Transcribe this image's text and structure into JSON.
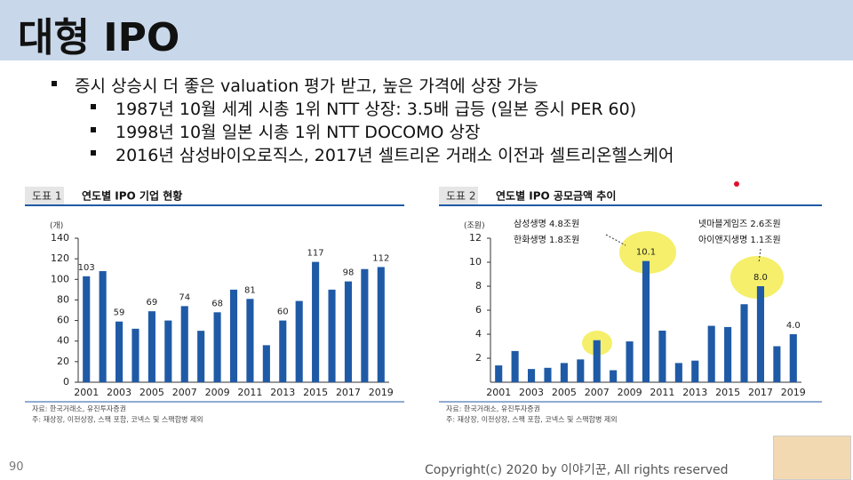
{
  "title": "대형 IPO",
  "bullets": [
    "증시 상승시 더 좋은 valuation 평가 받고, 높은 가격에 상장 가능",
    "1987년 10월 세계 시총 1위 NTT 상장: 3.5배 급등 (일본 증시 PER 60)",
    "1998년 10월 일본 시총 1위 NTT DOCOMO 상장",
    "2016년 삼성바이오로직스, 2017년 셀트리온 거래소 이전과 셀트리온헬스케어"
  ],
  "chart_data": [
    {
      "type": "bar",
      "label": "도표 1",
      "title": "연도별 IPO 기업 현황",
      "unit": "(개)",
      "categories": [
        "2001",
        null,
        "2003",
        null,
        "2005",
        null,
        "2007",
        null,
        "2009",
        null,
        "2011",
        null,
        "2013",
        null,
        "2015",
        null,
        "2017",
        null,
        "2019"
      ],
      "values": [
        103,
        108,
        59,
        52,
        69,
        60,
        74,
        50,
        68,
        90,
        81,
        36,
        60,
        79,
        117,
        90,
        98,
        110,
        112
      ],
      "value_labels": [
        "103",
        null,
        "59",
        null,
        "69",
        null,
        "74",
        null,
        "68",
        null,
        "81",
        null,
        "60",
        null,
        "117",
        null,
        "98",
        null,
        "112"
      ],
      "color": "#1f5aa6",
      "ylim": [
        0,
        140
      ],
      "yticks": [
        0,
        20,
        40,
        60,
        80,
        100,
        120,
        140
      ],
      "notes": [
        "자료: 한국거래소, 유진투자증권",
        "주: 재상장, 이전상장, 스팩 포함, 코넥스 및 스팩합병 제외"
      ]
    },
    {
      "type": "bar",
      "label": "도표 2",
      "title": "연도별 IPO 공모금액 추이",
      "unit": "(조원)",
      "categories": [
        "2001",
        null,
        "2003",
        null,
        "2005",
        null,
        "2007",
        null,
        "2009",
        null,
        "2011",
        null,
        "2013",
        null,
        "2015",
        null,
        "2017",
        null,
        "2019"
      ],
      "values": [
        1.4,
        2.6,
        1.1,
        1.2,
        1.6,
        1.9,
        3.5,
        1.0,
        3.4,
        10.1,
        4.3,
        1.6,
        1.8,
        4.7,
        4.6,
        6.5,
        8.0,
        3.0,
        4.0
      ],
      "value_labels": [
        null,
        null,
        null,
        null,
        null,
        null,
        null,
        null,
        null,
        "10.1",
        null,
        null,
        null,
        null,
        null,
        null,
        "8.0",
        null,
        "4.0"
      ],
      "color": "#1f5aa6",
      "ylim": [
        0,
        12
      ],
      "yticks": [
        2,
        4,
        6,
        8,
        10,
        12
      ],
      "annotations": [
        "삼성생명 4.8조원",
        "한화생명 1.8조원",
        "넷마블게임즈 2.6조원",
        "아이앤지생명 1.1조원"
      ],
      "notes": [
        "자료: 한국거래소, 유진투자증권",
        "주: 재상장, 이전상장, 스팩 포함, 코넥스 및 스팩합병 제외"
      ]
    }
  ],
  "footer": {
    "page": "90",
    "copyright": "Copyright(c) 2020 by 이야기꾼, All rights reserved"
  }
}
